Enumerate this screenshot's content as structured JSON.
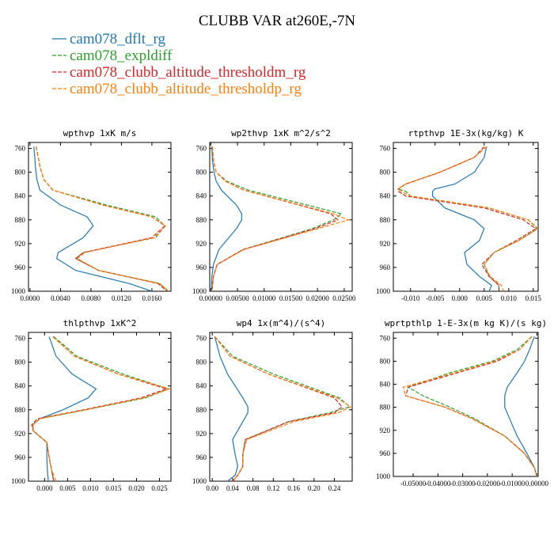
{
  "figure": {
    "title": "CLUBB VAR at260E,-7N"
  },
  "legend": [
    {
      "name": "cam078_dflt_rg",
      "color": "#1f77b4",
      "dash": "solid"
    },
    {
      "name": "cam078_expldiff",
      "color": "#2ca02c",
      "dash": "dashed"
    },
    {
      "name": "cam078_clubb_altitude_thresholdm_rg",
      "color": "#d62728",
      "dash": "dashed"
    },
    {
      "name": "cam078_clubb_altitude_thresholdp_rg",
      "color": "#ff7f0e",
      "dash": "dashed"
    }
  ],
  "chart_data": [
    {
      "type": "line",
      "title": "wpthvp  1xK m/s",
      "ylim": [
        1000,
        750
      ],
      "xlim": [
        -0.0002,
        0.0185
      ],
      "yticks": [
        760,
        800,
        840,
        880,
        920,
        960,
        1000
      ],
      "xticks": [
        0.0,
        0.004,
        0.008,
        0.012,
        0.016
      ],
      "xticklabels": [
        "0.0000",
        "0.0040",
        "0.0080",
        "0.0120",
        "0.0160"
      ],
      "y": [
        757,
        770,
        790,
        812,
        830,
        855,
        875,
        890,
        910,
        935,
        945,
        965,
        987,
        1000
      ],
      "series": [
        {
          "name": "cam078_dflt_rg",
          "values": [
            0.0005,
            0.0006,
            0.0007,
            0.0009,
            0.0013,
            0.004,
            0.0075,
            0.0083,
            0.007,
            0.0037,
            0.0035,
            0.006,
            0.013,
            0.016
          ]
        },
        {
          "name": "cam078_expldiff",
          "values": [
            0.0008,
            0.001,
            0.0013,
            0.0018,
            0.003,
            0.01,
            0.0165,
            0.0177,
            0.0165,
            0.007,
            0.006,
            0.009,
            0.017,
            0.0182
          ]
        },
        {
          "name": "cam078_clubb_altitude_thresholdm_rg",
          "values": [
            0.0008,
            0.001,
            0.0013,
            0.0018,
            0.003,
            0.0095,
            0.016,
            0.0177,
            0.016,
            0.007,
            0.006,
            0.009,
            0.0168,
            0.018
          ]
        },
        {
          "name": "cam078_clubb_altitude_thresholdp_rg",
          "values": [
            0.0008,
            0.001,
            0.0013,
            0.0018,
            0.003,
            0.0095,
            0.016,
            0.0178,
            0.0163,
            0.0072,
            0.0062,
            0.009,
            0.017,
            0.0182
          ]
        }
      ]
    },
    {
      "type": "line",
      "title": "wp2thvp  1xK m^2/s^2",
      "ylim": [
        1000,
        750
      ],
      "xlim": [
        -0.0002,
        0.0265
      ],
      "yticks": [
        760,
        800,
        840,
        880,
        920,
        960,
        1000
      ],
      "xticks": [
        0.0,
        0.005,
        0.01,
        0.015,
        0.02,
        0.025
      ],
      "xticklabels": [
        "0.00000",
        "0.00500",
        "0.01000",
        "0.01500",
        "0.02000",
        "0.02500"
      ],
      "y": [
        757,
        780,
        800,
        815,
        830,
        855,
        870,
        880,
        895,
        930,
        955,
        975,
        1000
      ],
      "series": [
        {
          "name": "cam078_dflt_rg",
          "values": [
            0.0002,
            0.0003,
            0.0006,
            0.001,
            0.002,
            0.0048,
            0.0058,
            0.0058,
            0.0048,
            0.0015,
            0.0005,
            0.0002,
            0.0001
          ]
        },
        {
          "name": "cam078_expldiff",
          "values": [
            0.0003,
            0.0005,
            0.001,
            0.003,
            0.007,
            0.018,
            0.0245,
            0.023,
            0.019,
            0.006,
            0.0012,
            0.0005,
            0.0002
          ]
        },
        {
          "name": "cam078_clubb_altitude_thresholdm_rg",
          "values": [
            0.0003,
            0.0005,
            0.001,
            0.0027,
            0.0062,
            0.0165,
            0.0225,
            0.0238,
            0.0195,
            0.006,
            0.0012,
            0.0005,
            0.0002
          ]
        },
        {
          "name": "cam078_clubb_altitude_thresholdp_rg",
          "values": [
            0.0003,
            0.0005,
            0.001,
            0.0027,
            0.0062,
            0.0168,
            0.023,
            0.0258,
            0.02,
            0.0062,
            0.0012,
            0.0005,
            0.0002
          ]
        }
      ]
    },
    {
      "type": "line",
      "title": "rtpthvp  1E-3x(kg/kg) K",
      "ylim": [
        1000,
        750
      ],
      "xlim": [
        -0.0135,
        0.016
      ],
      "yticks": [
        760,
        800,
        840,
        880,
        920,
        960,
        1000
      ],
      "xticks": [
        -0.01,
        -0.005,
        0.0,
        0.005,
        0.01,
        0.015
      ],
      "xticklabels": [
        "-0.010",
        "-0.005",
        "0.000",
        "0.005",
        "0.010",
        "0.015"
      ],
      "y": [
        757,
        775,
        800,
        820,
        828,
        832,
        840,
        860,
        880,
        895,
        915,
        935,
        955,
        975,
        990,
        1000
      ],
      "series": [
        {
          "name": "cam078_dflt_rg",
          "values": [
            0.0055,
            0.005,
            0.003,
            -0.001,
            -0.005,
            -0.0055,
            -0.0055,
            -0.003,
            0.003,
            0.005,
            0.004,
            0.001,
            0.0015,
            0.004,
            0.0065,
            0.006
          ]
        },
        {
          "name": "cam078_expldiff",
          "values": [
            0.0055,
            0.003,
            -0.004,
            -0.011,
            -0.0125,
            -0.011,
            -0.01,
            0.006,
            0.014,
            0.0158,
            0.012,
            0.007,
            0.005,
            0.006,
            0.008,
            0.008
          ]
        },
        {
          "name": "cam078_clubb_altitude_thresholdm_rg",
          "values": [
            0.005,
            0.003,
            -0.004,
            -0.011,
            -0.0125,
            -0.0125,
            -0.011,
            0.005,
            0.013,
            0.0155,
            0.0115,
            0.007,
            0.0045,
            0.006,
            0.008,
            0.008
          ]
        },
        {
          "name": "cam078_clubb_altitude_thresholdp_rg",
          "values": [
            0.0055,
            0.003,
            -0.004,
            -0.011,
            -0.0125,
            -0.012,
            -0.01,
            0.006,
            0.014,
            0.016,
            0.012,
            0.007,
            0.005,
            0.0062,
            0.0085,
            0.009
          ]
        }
      ]
    },
    {
      "type": "line",
      "title": "thlpthvp  1xK^2",
      "ylim": [
        1000,
        750
      ],
      "xlim": [
        -0.0035,
        0.0275
      ],
      "yticks": [
        760,
        800,
        840,
        880,
        920,
        960,
        1000
      ],
      "xticks": [
        0.0,
        0.005,
        0.01,
        0.015,
        0.02,
        0.025
      ],
      "xticklabels": [
        "0.000",
        "0.005",
        "0.010",
        "0.015",
        "0.020",
        "0.025"
      ],
      "y": [
        757,
        790,
        820,
        845,
        860,
        880,
        895,
        905,
        915,
        935,
        960,
        980,
        1000
      ],
      "series": [
        {
          "name": "cam078_dflt_rg",
          "values": [
            0.001,
            0.0025,
            0.006,
            0.0112,
            0.0095,
            0.004,
            -0.001,
            -0.0025,
            -0.0025,
            0.0005,
            0.0005,
            0.0006,
            0.0008
          ]
        },
        {
          "name": "cam078_expldiff",
          "values": [
            0.002,
            0.007,
            0.017,
            0.027,
            0.022,
            0.009,
            -0.001,
            -0.0025,
            -0.0025,
            0.0005,
            0.001,
            0.0015,
            0.002
          ]
        },
        {
          "name": "cam078_clubb_altitude_thresholdm_rg",
          "values": [
            0.0018,
            0.0065,
            0.016,
            0.0265,
            0.021,
            0.0085,
            -0.0015,
            -0.0028,
            -0.0025,
            0.0005,
            0.001,
            0.0015,
            0.002
          ]
        },
        {
          "name": "cam078_clubb_altitude_thresholdp_rg",
          "values": [
            0.0018,
            0.0065,
            0.016,
            0.0272,
            0.0215,
            0.009,
            -0.001,
            -0.0025,
            -0.0025,
            0.0005,
            0.001,
            0.0015,
            0.0025
          ]
        }
      ]
    },
    {
      "type": "line",
      "title": "wp4  1x(m^4)/(s^4)",
      "ylim": [
        1000,
        750
      ],
      "xlim": [
        -0.005,
        0.275
      ],
      "yticks": [
        760,
        800,
        840,
        880,
        920,
        960,
        1000
      ],
      "xticks": [
        0.0,
        0.04,
        0.08,
        0.12,
        0.16,
        0.2,
        0.24
      ],
      "xticklabels": [
        "0.00",
        "0.04",
        "0.08",
        "0.12",
        "0.16",
        "0.20",
        "0.24"
      ],
      "y": [
        757,
        790,
        820,
        860,
        875,
        885,
        900,
        930,
        955,
        975,
        990,
        1000
      ],
      "series": [
        {
          "name": "cam078_dflt_rg",
          "values": [
            0.005,
            0.015,
            0.03,
            0.06,
            0.07,
            0.07,
            0.06,
            0.04,
            0.045,
            0.05,
            0.045,
            0.03
          ]
        },
        {
          "name": "cam078_expldiff",
          "values": [
            0.005,
            0.04,
            0.12,
            0.25,
            0.27,
            0.23,
            0.15,
            0.065,
            0.06,
            0.06,
            0.05,
            0.04
          ]
        },
        {
          "name": "cam078_clubb_altitude_thresholdm_rg",
          "values": [
            0.005,
            0.035,
            0.11,
            0.24,
            0.255,
            0.24,
            0.15,
            0.065,
            0.06,
            0.06,
            0.05,
            0.04
          ]
        },
        {
          "name": "cam078_clubb_altitude_thresholdp_rg",
          "values": [
            0.005,
            0.035,
            0.11,
            0.245,
            0.272,
            0.248,
            0.16,
            0.068,
            0.06,
            0.06,
            0.05,
            0.04
          ]
        }
      ]
    },
    {
      "type": "line",
      "title": "wprtpthlp  1-E-3x(m kg K)/(s kg)",
      "ylim": [
        1000,
        750
      ],
      "xlim": [
        -0.058,
        0.0005
      ],
      "yticks": [
        760,
        800,
        840,
        880,
        920,
        960,
        1000
      ],
      "xticks": [
        -0.05,
        -0.04,
        -0.03,
        -0.02,
        -0.01,
        0.0
      ],
      "xticklabels": [
        "-0.05000",
        "-0.04000",
        "-0.03000",
        "-0.02000",
        "-0.01000",
        "0.00000"
      ],
      "y": [
        757,
        780,
        800,
        820,
        845,
        860,
        880,
        900,
        930,
        960,
        985,
        1000
      ],
      "series": [
        {
          "name": "cam078_dflt_rg",
          "values": [
            -0.001,
            -0.003,
            -0.005,
            -0.008,
            -0.012,
            -0.013,
            -0.013,
            -0.011,
            -0.008,
            -0.004,
            -0.001,
            0.0
          ]
        },
        {
          "name": "cam078_expldiff",
          "values": [
            -0.002,
            -0.008,
            -0.018,
            -0.035,
            -0.052,
            -0.046,
            -0.035,
            -0.025,
            -0.013,
            -0.005,
            -0.001,
            0.0
          ]
        },
        {
          "name": "cam078_clubb_altitude_thresholdm_rg",
          "values": [
            -0.002,
            -0.007,
            -0.016,
            -0.032,
            -0.052,
            -0.053,
            -0.037,
            -0.026,
            -0.013,
            -0.005,
            -0.001,
            0.0
          ]
        },
        {
          "name": "cam078_clubb_altitude_thresholdp_rg",
          "values": [
            -0.002,
            -0.007,
            -0.017,
            -0.033,
            -0.054,
            -0.053,
            -0.037,
            -0.026,
            -0.013,
            -0.005,
            -0.001,
            0.0
          ]
        }
      ]
    }
  ]
}
